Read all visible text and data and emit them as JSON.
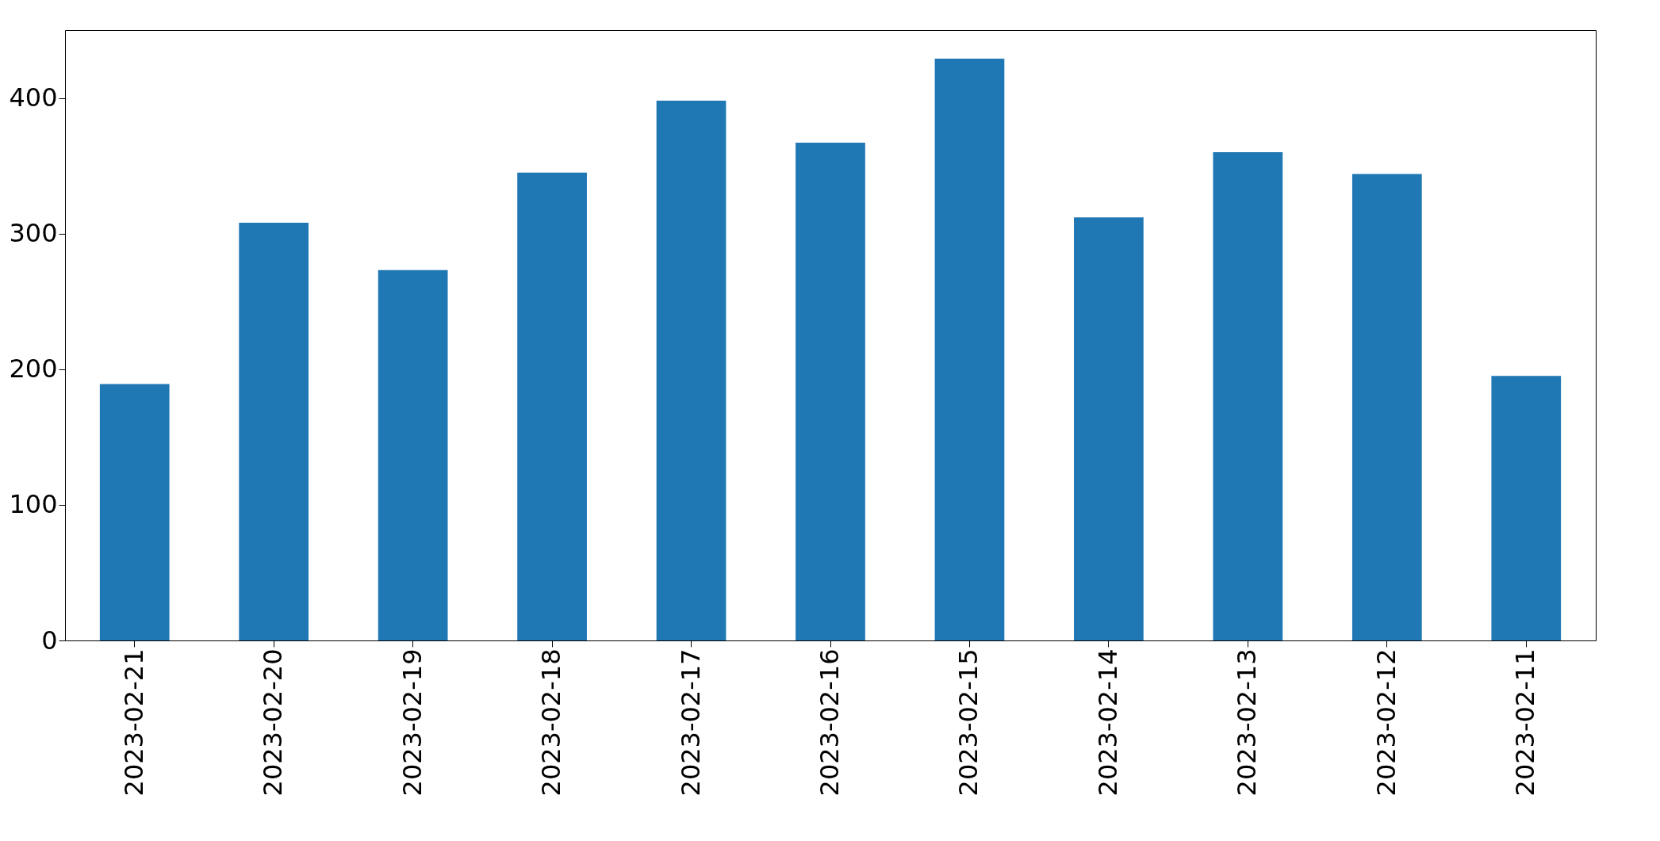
{
  "chart_data": {
    "type": "bar",
    "categories": [
      "2023-02-21",
      "2023-02-20",
      "2023-02-19",
      "2023-02-18",
      "2023-02-17",
      "2023-02-16",
      "2023-02-15",
      "2023-02-14",
      "2023-02-13",
      "2023-02-12",
      "2023-02-11"
    ],
    "values": [
      189,
      308,
      273,
      345,
      398,
      367,
      429,
      312,
      360,
      344,
      195
    ],
    "color": "#1f77b4",
    "ylim": [
      0,
      450
    ],
    "yticks": [
      0,
      100,
      200,
      300,
      400
    ],
    "grid": false
  }
}
